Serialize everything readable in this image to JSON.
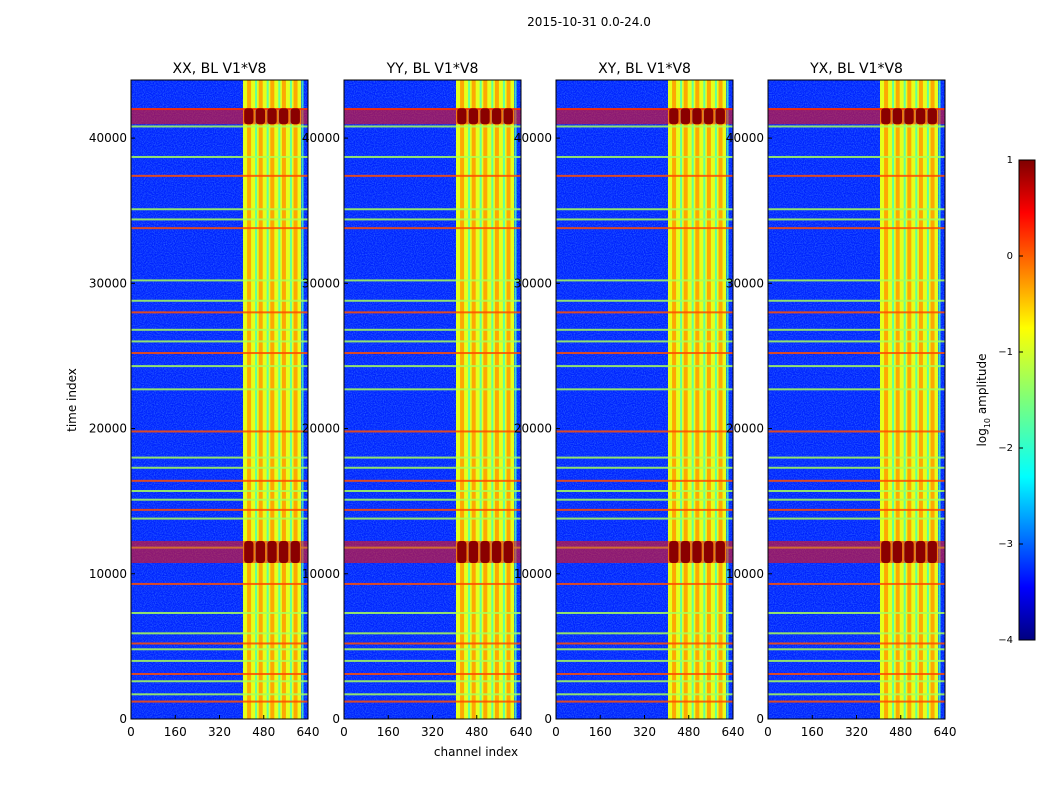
{
  "chart_data": {
    "type": "heatmap",
    "suptitle": "2015-10-31 0.0-24.0",
    "xlabel": "channel index",
    "ylabel": "time index",
    "x_range": [
      0,
      640
    ],
    "y_range": [
      0,
      44000
    ],
    "x_ticks": [
      "0",
      "160",
      "320",
      "480",
      "640"
    ],
    "y_ticks": [
      "0",
      "10000",
      "20000",
      "30000",
      "40000"
    ],
    "x_tick_values": [
      0,
      160,
      320,
      480,
      640
    ],
    "y_tick_values": [
      0,
      10000,
      20000,
      30000,
      40000
    ],
    "panels": [
      {
        "title": "XX, BL V1*V8"
      },
      {
        "title": "YY, BL V1*V8"
      },
      {
        "title": "XY, BL V1*V8"
      },
      {
        "title": "YX, BL V1*V8"
      }
    ],
    "colorbar": {
      "label": "log",
      "label_sub": "10",
      "label_suffix": " amplitude",
      "range": [
        -4,
        1
      ],
      "ticks": [
        "1",
        "0",
        "−1",
        "−2",
        "−3",
        "−4"
      ],
      "tick_values": [
        1,
        0,
        -1,
        -2,
        -3,
        -4
      ],
      "colormap": "jet"
    },
    "features": {
      "rfi_band_channels": [
        405,
        615
      ],
      "strong_rfi_times": [
        41500,
        11500
      ],
      "flagged_rows": [
        1200,
        1700,
        2600,
        3100,
        4000,
        4800,
        5200,
        5900,
        7300,
        9300,
        11800,
        13800,
        14400,
        15100,
        15700,
        16400,
        17300,
        18000,
        19800,
        22700,
        24300,
        25200,
        26000,
        26800,
        28000,
        28800,
        30200,
        33800,
        34400,
        35100,
        37400,
        38700,
        40800,
        42000
      ],
      "background_level": -3.2,
      "band_level": -1.0
    }
  }
}
